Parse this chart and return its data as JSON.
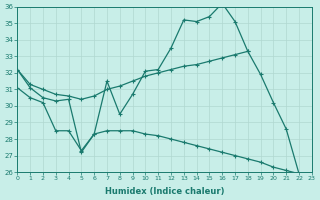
{
  "xlabel": "Humidex (Indice chaleur)",
  "bg_color": "#c8eee8",
  "grid_color": "#b0d8d0",
  "line_color": "#1a7a6e",
  "ylim": [
    26,
    36
  ],
  "xlim": [
    0,
    23
  ],
  "top_x": [
    0,
    1,
    2,
    3,
    4,
    5,
    6,
    7,
    8,
    9,
    10,
    11,
    12,
    13,
    14,
    15,
    16,
    17,
    18,
    19,
    20,
    21,
    22
  ],
  "top_y": [
    32.2,
    31.1,
    30.5,
    30.3,
    30.4,
    27.2,
    28.3,
    31.5,
    29.5,
    30.7,
    32.1,
    32.2,
    33.5,
    35.2,
    35.1,
    35.4,
    36.2,
    35.1,
    33.3,
    31.9,
    30.2,
    28.6,
    25.9
  ],
  "mid_x": [
    0,
    1,
    2,
    3,
    4,
    5,
    6,
    7,
    8,
    9,
    10,
    11,
    12,
    13,
    14,
    15,
    16,
    17,
    18
  ],
  "mid_y": [
    32.2,
    31.3,
    31.0,
    30.7,
    30.6,
    30.4,
    30.6,
    31.0,
    31.2,
    31.5,
    31.8,
    32.0,
    32.2,
    32.4,
    32.5,
    32.7,
    32.9,
    33.1,
    33.3
  ],
  "bot_x": [
    0,
    1,
    2,
    3,
    4,
    5,
    6,
    7,
    8,
    9,
    10,
    11,
    12,
    13,
    14,
    15,
    16,
    17,
    18,
    19,
    20,
    21,
    22
  ],
  "bot_y": [
    31.1,
    30.5,
    30.2,
    28.5,
    28.5,
    27.3,
    28.3,
    28.5,
    28.5,
    28.5,
    28.3,
    28.2,
    28.0,
    27.8,
    27.6,
    27.4,
    27.2,
    27.0,
    26.8,
    26.6,
    26.3,
    26.1,
    25.9
  ]
}
